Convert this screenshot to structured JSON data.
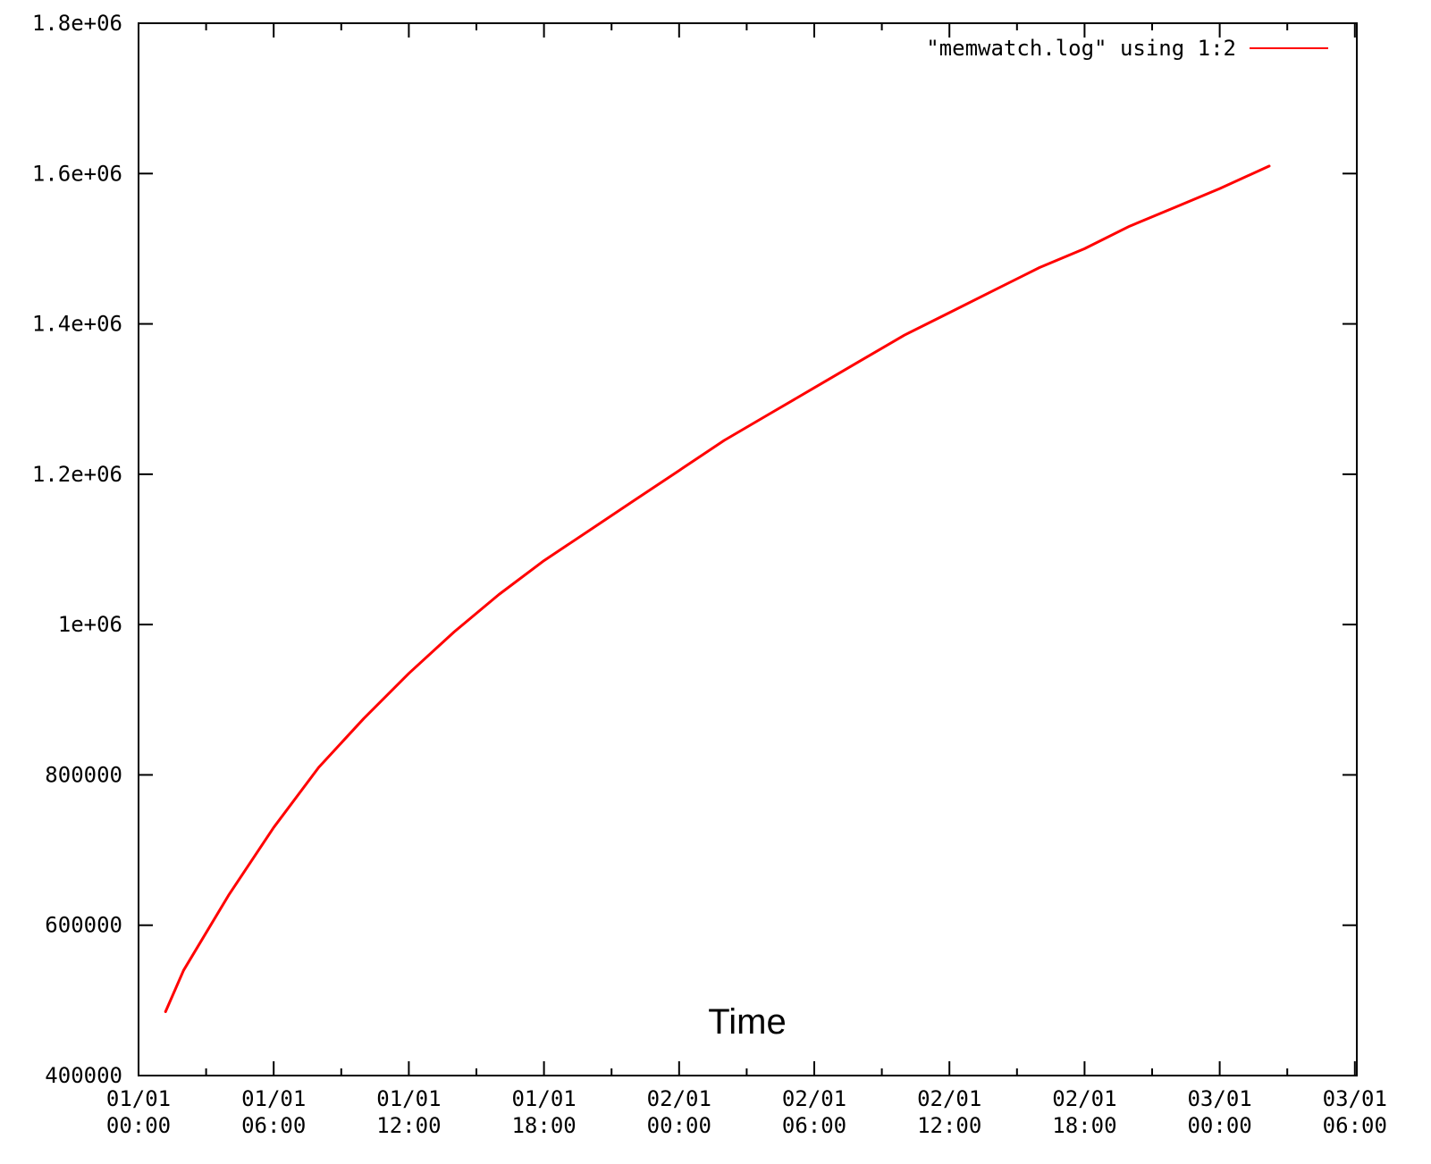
{
  "chart_data": {
    "type": "line",
    "title": "",
    "xlabel": "Time",
    "ylabel": "",
    "x_type": "time",
    "x_tick_labels": [
      [
        "01/01",
        "00:00"
      ],
      [
        "01/01",
        "06:00"
      ],
      [
        "01/01",
        "12:00"
      ],
      [
        "01/01",
        "18:00"
      ],
      [
        "02/01",
        "00:00"
      ],
      [
        "02/01",
        "06:00"
      ],
      [
        "02/01",
        "12:00"
      ],
      [
        "02/01",
        "18:00"
      ],
      [
        "03/01",
        "00:00"
      ],
      [
        "03/01",
        "06:00"
      ]
    ],
    "y_tick_labels": [
      "400000",
      "600000",
      "800000",
      "1e+06",
      "1.2e+06",
      "1.4e+06",
      "1.6e+06",
      "1.8e+06"
    ],
    "ylim": [
      400000,
      1800000
    ],
    "grid": false,
    "legend_position": "top-right",
    "series": [
      {
        "name": "\"memwatch.log\" using 1:2",
        "color": "#ff0000",
        "x": [
          "01/01 01:12",
          "01/01 02:00",
          "01/01 04:00",
          "01/01 06:00",
          "01/01 08:00",
          "01/01 10:00",
          "01/01 12:00",
          "01/01 14:00",
          "01/01 16:00",
          "01/01 18:00",
          "01/01 20:00",
          "01/01 22:00",
          "02/01 00:00",
          "02/01 02:00",
          "02/01 04:00",
          "02/01 06:00",
          "02/01 08:00",
          "02/01 10:00",
          "02/01 12:00",
          "02/01 14:00",
          "02/01 16:00",
          "02/01 18:00",
          "02/01 20:00",
          "02/01 22:00",
          "03/01 00:00",
          "03/01 02:12"
        ],
        "y": [
          485000,
          540000,
          640000,
          730000,
          810000,
          875000,
          935000,
          990000,
          1040000,
          1085000,
          1125000,
          1165000,
          1205000,
          1245000,
          1280000,
          1315000,
          1350000,
          1385000,
          1415000,
          1445000,
          1475000,
          1500000,
          1530000,
          1555000,
          1580000,
          1610000
        ]
      }
    ]
  }
}
